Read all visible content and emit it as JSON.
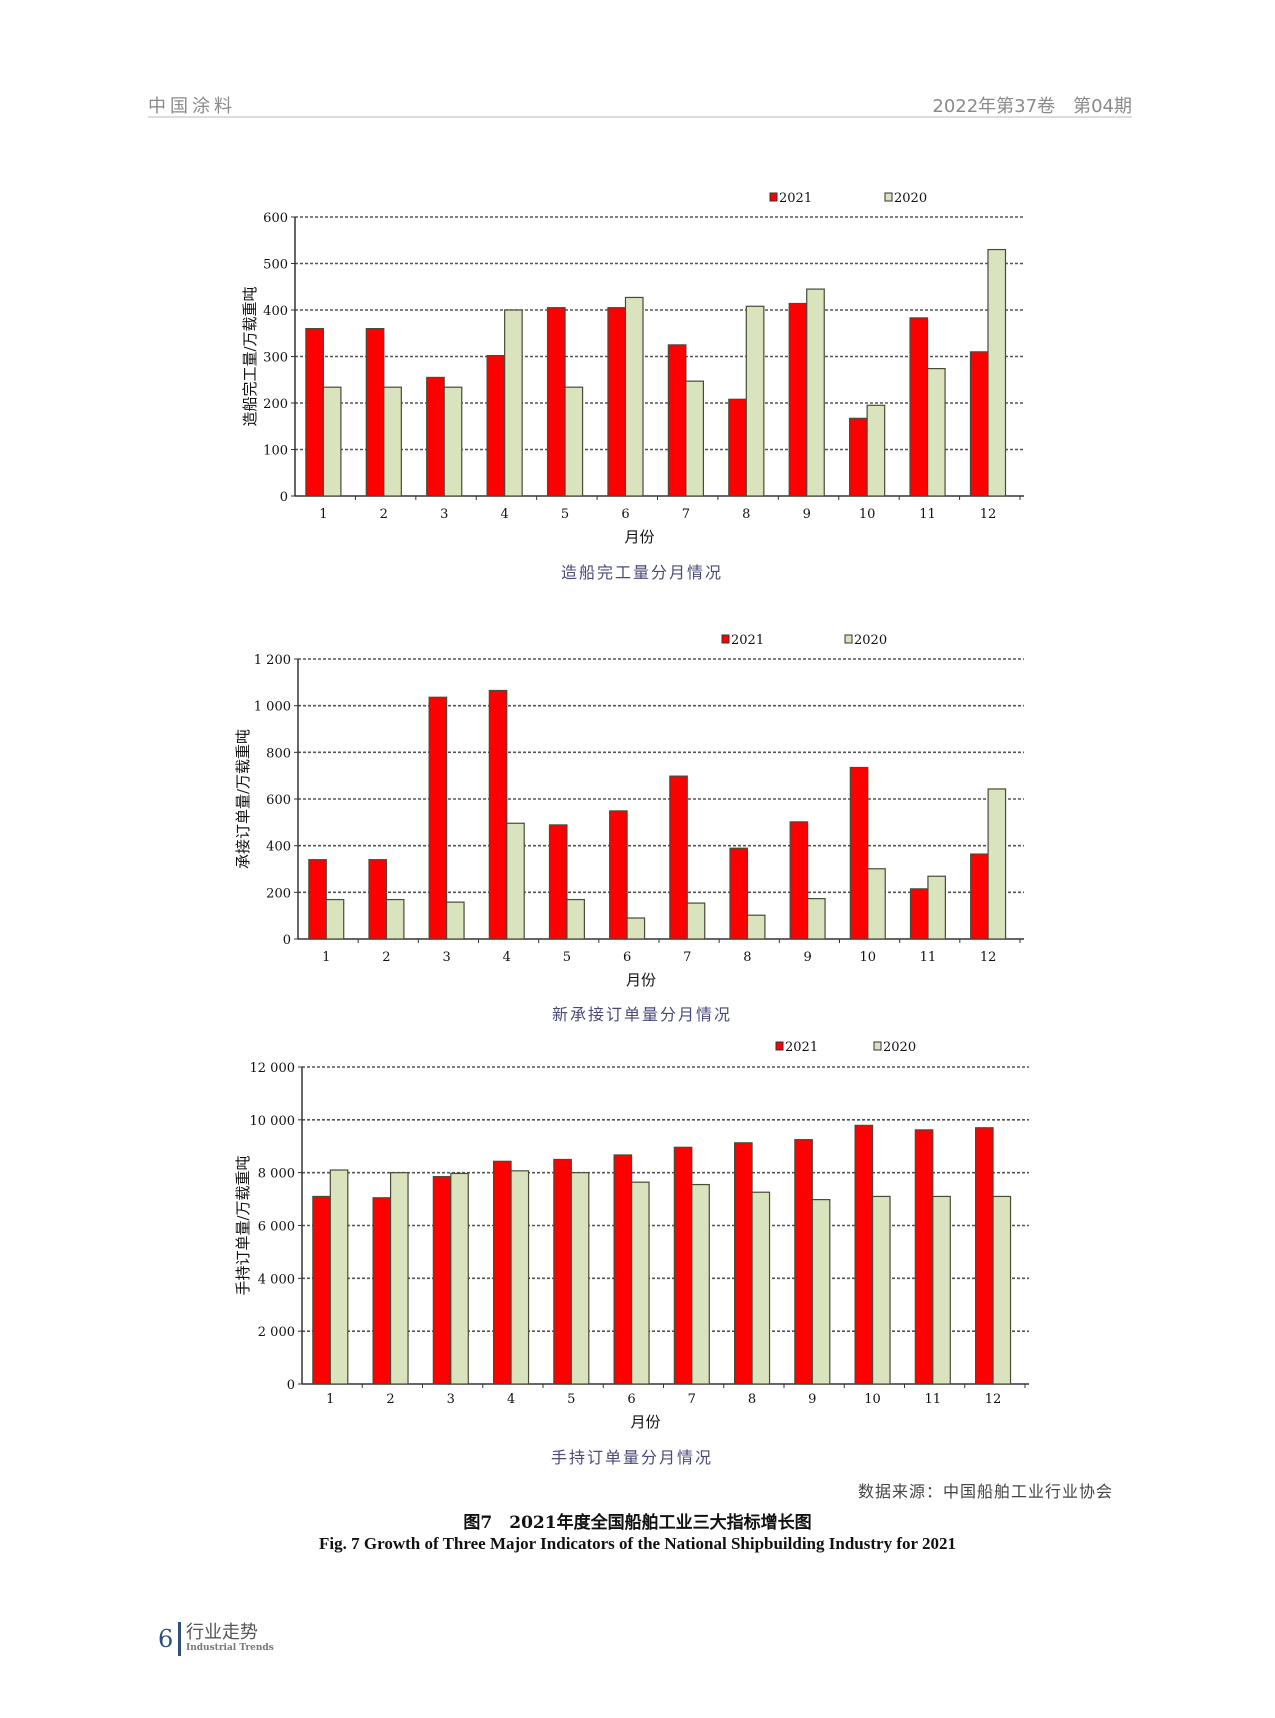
{
  "header": {
    "journal": "中国涂料",
    "issue": "2022年第37卷　第04期"
  },
  "colors": {
    "s2021": "#ff0000",
    "s2020": "#d9e4bf",
    "grid": "#555555"
  },
  "chart_data": [
    {
      "type": "bar",
      "caption": "造船完工量分月情况",
      "xlabel": "月份",
      "ylabel": "造船完工量/万载重吨",
      "categories": [
        "1",
        "2",
        "3",
        "4",
        "5",
        "6",
        "7",
        "8",
        "9",
        "10",
        "11",
        "12"
      ],
      "ylim": [
        0,
        600
      ],
      "yticks": [
        0,
        100,
        200,
        300,
        400,
        500,
        600
      ],
      "ytick_labels": [
        "0",
        "100",
        "200",
        "300",
        "400",
        "500",
        "600"
      ],
      "grid": true,
      "legend": "top-right",
      "series": [
        {
          "name": "2021",
          "values": [
            360,
            360,
            255,
            302,
            405,
            405,
            325,
            208,
            414,
            167,
            383,
            310
          ]
        },
        {
          "name": "2020",
          "values": [
            234,
            234,
            234,
            400,
            234,
            427,
            247,
            408,
            445,
            195,
            274,
            530
          ]
        }
      ]
    },
    {
      "type": "bar",
      "caption": "新承接订单量分月情况",
      "xlabel": "月份",
      "ylabel": "承接订单量/万载重吨",
      "categories": [
        "1",
        "2",
        "3",
        "4",
        "5",
        "6",
        "7",
        "8",
        "9",
        "10",
        "11",
        "12"
      ],
      "ylim": [
        0,
        1200
      ],
      "yticks": [
        0,
        200,
        400,
        600,
        800,
        1000,
        1200
      ],
      "ytick_labels": [
        "0",
        "200",
        "400",
        "600",
        "800",
        "1 000",
        "1 200"
      ],
      "grid": true,
      "legend": "top-right",
      "series": [
        {
          "name": "2021",
          "values": [
            340,
            340,
            1036,
            1065,
            489,
            549,
            698,
            389,
            502,
            735,
            215,
            364
          ]
        },
        {
          "name": "2020",
          "values": [
            169,
            169,
            158,
            496,
            169,
            90,
            154,
            102,
            173,
            301,
            269,
            643
          ]
        }
      ]
    },
    {
      "type": "bar",
      "caption": "手持订单量分月情况",
      "xlabel": "月份",
      "ylabel": "手持订单量/万载重吨",
      "categories": [
        "1",
        "2",
        "3",
        "4",
        "5",
        "6",
        "7",
        "8",
        "9",
        "10",
        "11",
        "12"
      ],
      "ylim": [
        0,
        12000
      ],
      "yticks": [
        0,
        2000,
        4000,
        6000,
        8000,
        10000,
        12000
      ],
      "ytick_labels": [
        "0",
        "2 000",
        "4 000",
        "6 000",
        "8 000",
        "10 000",
        "12 000"
      ],
      "grid": true,
      "legend": "top-right",
      "series": [
        {
          "name": "2021",
          "values": [
            7100,
            7050,
            7850,
            8430,
            8500,
            8670,
            8960,
            9130,
            9250,
            9790,
            9620,
            9700
          ]
        },
        {
          "name": "2020",
          "values": [
            8100,
            8000,
            7970,
            8070,
            8000,
            7640,
            7550,
            7260,
            6980,
            7100,
            7100,
            7100
          ]
        }
      ]
    }
  ],
  "source": "数据来源：中国船舶工业行业协会",
  "figure": {
    "title_cn": "图7　2021年度全国船舶工业三大指标增长图",
    "title_en": "Fig. 7   Growth of Three Major Indicators of the National Shipbuilding Industry for 2021"
  },
  "footer": {
    "page": "6",
    "section_cn": "行业走势",
    "section_en": "Industrial Trends"
  }
}
